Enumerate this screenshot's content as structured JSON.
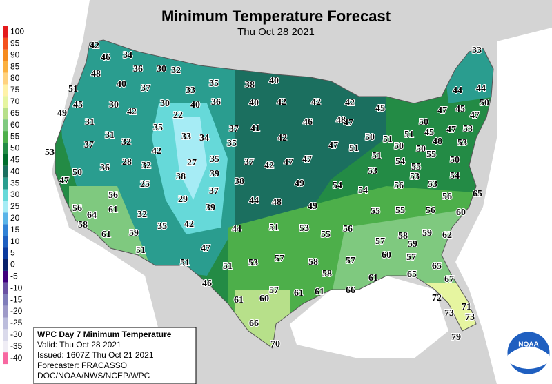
{
  "header": {
    "title": "Minimum Temperature Forecast",
    "subtitle": "Thu Oct 28 2021"
  },
  "legend": {
    "items": [
      {
        "value": 100,
        "color": "#e41a1c"
      },
      {
        "value": 95,
        "color": "#f4511e"
      },
      {
        "value": 90,
        "color": "#f68b1f"
      },
      {
        "value": 85,
        "color": "#fbb040"
      },
      {
        "value": 80,
        "color": "#ffd27f"
      },
      {
        "value": 75,
        "color": "#fff2a8"
      },
      {
        "value": 70,
        "color": "#e6f5a0"
      },
      {
        "value": 65,
        "color": "#b7e08a"
      },
      {
        "value": 60,
        "color": "#7fc97f"
      },
      {
        "value": 55,
        "color": "#4daf4a"
      },
      {
        "value": 50,
        "color": "#238b45"
      },
      {
        "value": 45,
        "color": "#006d2c"
      },
      {
        "value": 40,
        "color": "#1b6f5f"
      },
      {
        "value": 35,
        "color": "#2a9d8f"
      },
      {
        "value": 30,
        "color": "#66d9d9"
      },
      {
        "value": 25,
        "color": "#a6ecf5"
      },
      {
        "value": 20,
        "color": "#5ab4e8"
      },
      {
        "value": 15,
        "color": "#3182d6"
      },
      {
        "value": 10,
        "color": "#1f5fc0"
      },
      {
        "value": 5,
        "color": "#0b3a9e"
      },
      {
        "value": 0,
        "color": "#08216b"
      },
      {
        "value": -5,
        "color": "#3f007d"
      },
      {
        "value": -10,
        "color": "#6a51a3"
      },
      {
        "value": -15,
        "color": "#807dba"
      },
      {
        "value": -20,
        "color": "#9e9ac8"
      },
      {
        "value": -25,
        "color": "#bcbddc"
      },
      {
        "value": -30,
        "color": "#dadaeb"
      },
      {
        "value": -35,
        "color": "#efedf5"
      },
      {
        "value": -40,
        "color": "#f768a1"
      }
    ]
  },
  "info": {
    "lines": [
      "WPC Day 7 Minimum Temperature",
      "Valid: Thu Oct 28 2021",
      "Issued: 1607Z Thu Oct 21 2021",
      "Forecaster: FRACASSO",
      "DOC/NOAA/NWS/NCEP/WPC"
    ]
  },
  "logo": {
    "text": "NOAA"
  },
  "stations": [
    42,
    46,
    34,
    36,
    30,
    32,
    35,
    38,
    40,
    33,
    48,
    51,
    40,
    37,
    33,
    40,
    42,
    42,
    42,
    44,
    44,
    45,
    30,
    42,
    30,
    40,
    36,
    45,
    47,
    45,
    47,
    50,
    49,
    31,
    22,
    35,
    37,
    41,
    46,
    48,
    47,
    50,
    45,
    47,
    53,
    31,
    32,
    33,
    34,
    35,
    42,
    50,
    51,
    50,
    51,
    50,
    48,
    53,
    53,
    37,
    42,
    47,
    51,
    51,
    54,
    55,
    50,
    36,
    28,
    32,
    27,
    35,
    37,
    42,
    47,
    47,
    50,
    39,
    38,
    53,
    55,
    47,
    25,
    38,
    49,
    54,
    54,
    56,
    53,
    53,
    54,
    37,
    56,
    29,
    44,
    48,
    56,
    65,
    56,
    61,
    39,
    49,
    55,
    55,
    56,
    60,
    64,
    32,
    58,
    35,
    42,
    44,
    51,
    53,
    55,
    56,
    58,
    59,
    62,
    61,
    59,
    57,
    59,
    47,
    51,
    60,
    57,
    51,
    51,
    53,
    57,
    58,
    57,
    65,
    58,
    61,
    65,
    67,
    46,
    57,
    61,
    61,
    66,
    61,
    60,
    72,
    71,
    73,
    73,
    66,
    79,
    70
  ]
}
